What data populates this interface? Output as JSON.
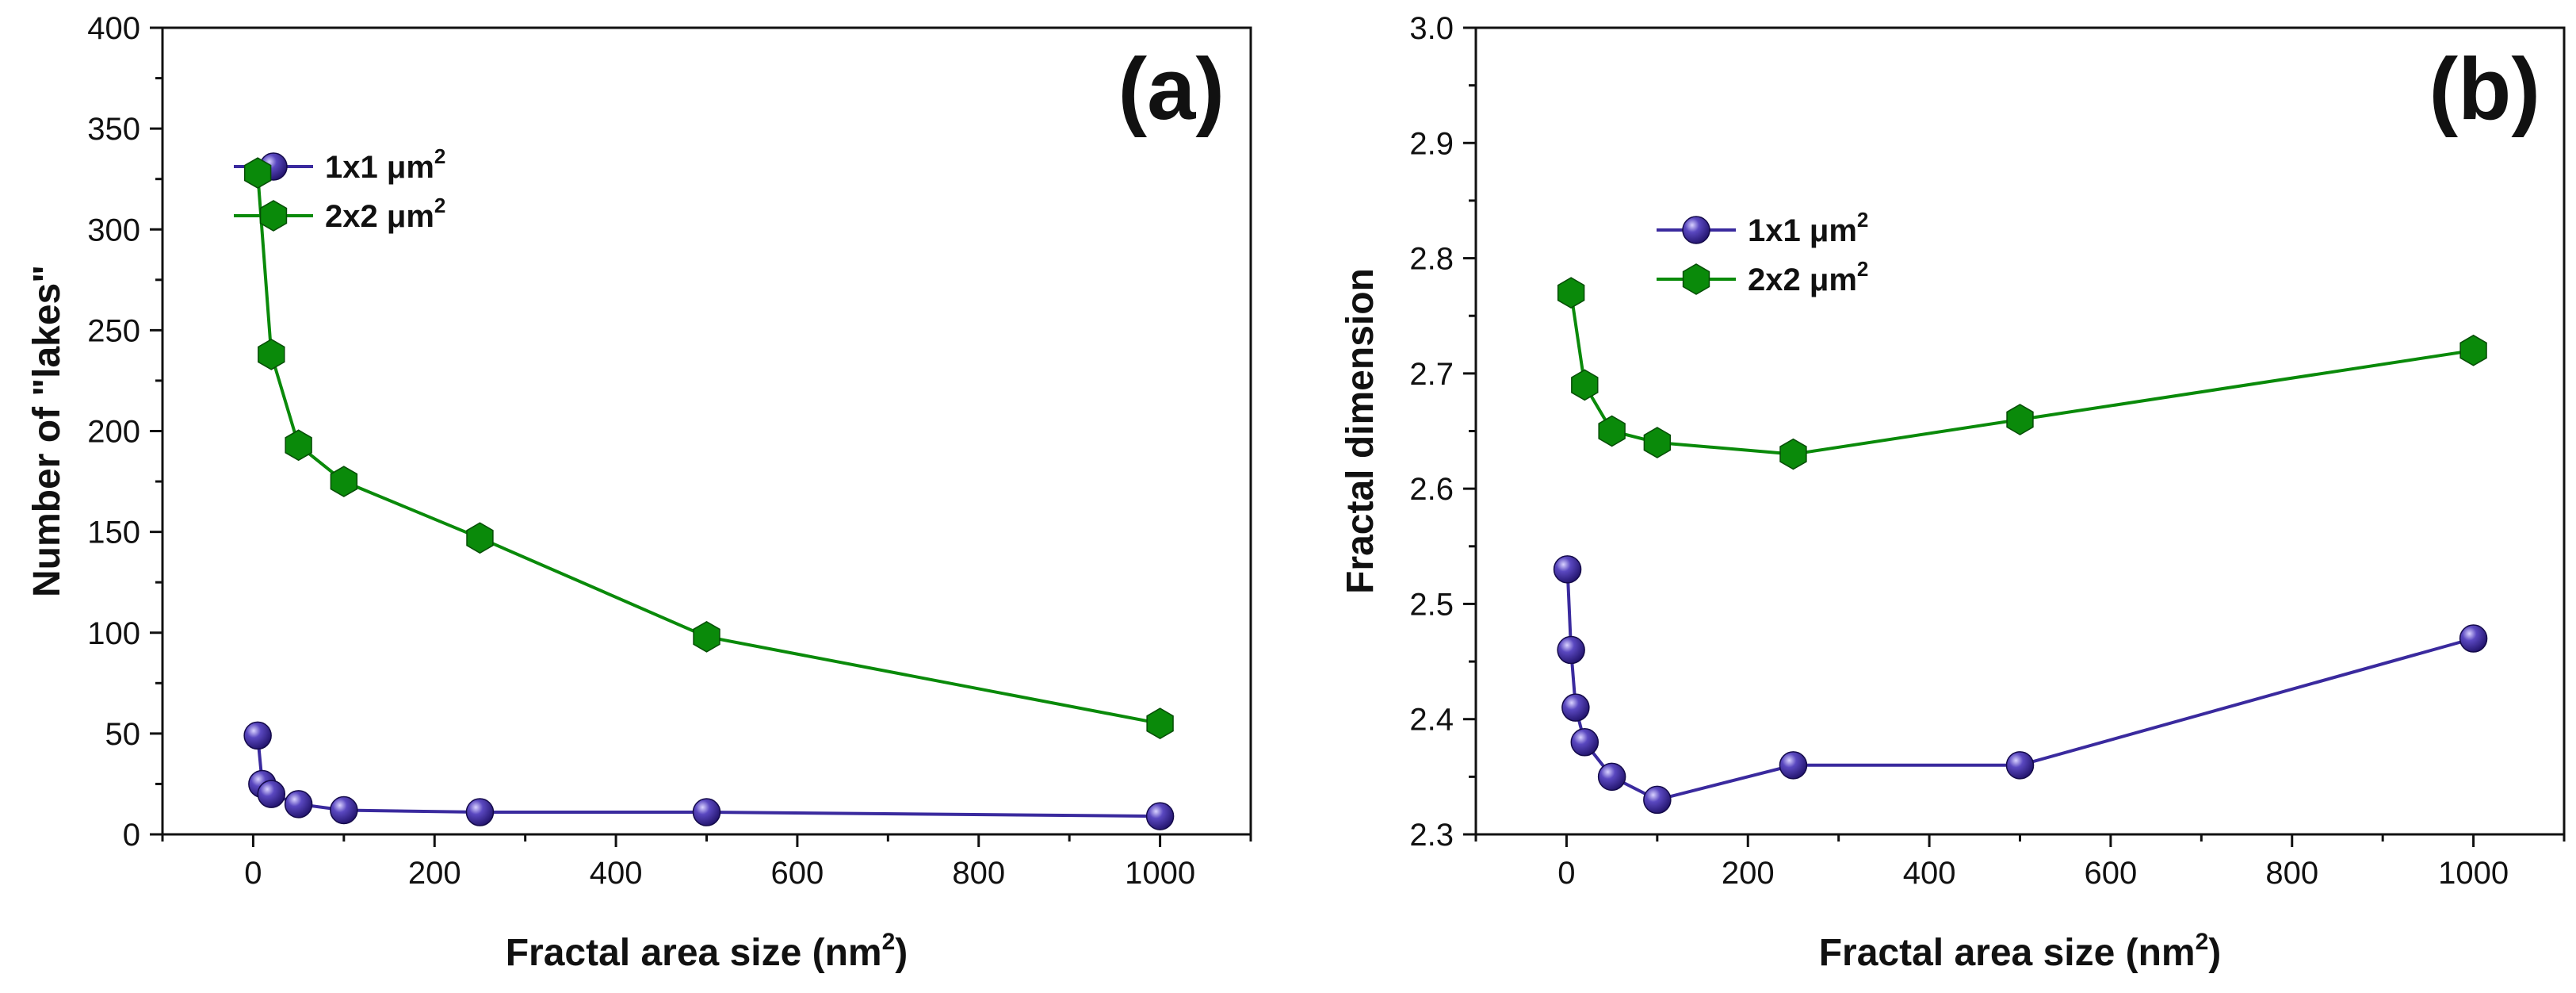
{
  "chart_data": [
    {
      "type": "line",
      "panel_label": "(a)",
      "xlabel": "Fractal area size (nm",
      "xlabel_sup": "2",
      "xlabel_close": ")",
      "ylabel": "Number of \"lakes\"",
      "xlim": [
        -100,
        1100
      ],
      "ylim": [
        0,
        400
      ],
      "xticks": [
        0,
        200,
        400,
        600,
        800,
        1000
      ],
      "xtick_labels": [
        "0",
        "200",
        "400",
        "600",
        "800",
        "1000"
      ],
      "yticks": [
        0,
        50,
        100,
        150,
        200,
        250,
        300,
        350,
        400
      ],
      "ytick_labels": [
        "0",
        "50",
        "100",
        "150",
        "200",
        "250",
        "300",
        "350",
        "400"
      ],
      "legend_position": "upper-left",
      "series": [
        {
          "name": "1x1 μm",
          "name_sup": "2",
          "color": "#3a2a9e",
          "marker": "sphere",
          "x": [
            5,
            10,
            20,
            50,
            100,
            250,
            500,
            1000
          ],
          "y": [
            49,
            25,
            20,
            15,
            12,
            11,
            11,
            9
          ]
        },
        {
          "name": "2x2 μm",
          "name_sup": "2",
          "color": "#0a8a0a",
          "marker": "hexagon",
          "x": [
            5,
            20,
            50,
            100,
            250,
            500,
            1000
          ],
          "y": [
            328,
            238,
            193,
            175,
            147,
            98,
            55
          ]
        }
      ]
    },
    {
      "type": "line",
      "panel_label": "(b)",
      "xlabel": "Fractal area size (nm",
      "xlabel_sup": "2",
      "xlabel_close": ")",
      "ylabel": "Fractal dimension",
      "xlim": [
        -100,
        1100
      ],
      "ylim": [
        2.3,
        3.0
      ],
      "xticks": [
        0,
        200,
        400,
        600,
        800,
        1000
      ],
      "xtick_labels": [
        "0",
        "200",
        "400",
        "600",
        "800",
        "1000"
      ],
      "yticks": [
        2.3,
        2.4,
        2.5,
        2.6,
        2.7,
        2.8,
        2.9,
        3.0
      ],
      "ytick_labels": [
        "2.3",
        "2.4",
        "2.5",
        "2.6",
        "2.7",
        "2.8",
        "2.9",
        "3.0"
      ],
      "legend_position": "upper-left",
      "series": [
        {
          "name": "1x1 μm",
          "name_sup": "2",
          "color": "#3a2a9e",
          "marker": "sphere",
          "x": [
            1,
            5,
            10,
            20,
            50,
            100,
            250,
            500,
            1000
          ],
          "y": [
            2.53,
            2.46,
            2.41,
            2.38,
            2.35,
            2.33,
            2.36,
            2.36,
            2.47
          ]
        },
        {
          "name": "2x2 μm",
          "name_sup": "2",
          "color": "#0a8a0a",
          "marker": "hexagon",
          "x": [
            5,
            20,
            50,
            100,
            250,
            500,
            1000
          ],
          "y": [
            2.77,
            2.69,
            2.65,
            2.64,
            2.63,
            2.66,
            2.72
          ]
        }
      ]
    }
  ]
}
